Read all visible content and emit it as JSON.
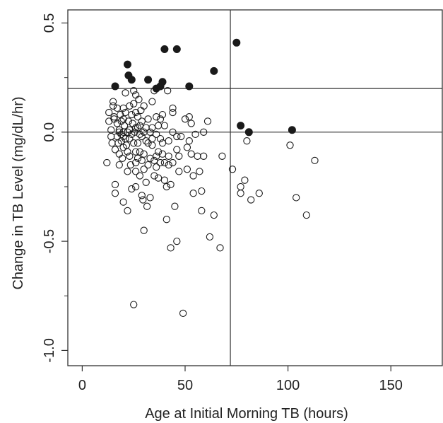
{
  "chart_data": {
    "type": "scatter",
    "title": "",
    "xlabel": "Age at Initial Morning TB (hours)",
    "ylabel": "Change in TB Level (mg/dL/hr)",
    "xlim": [
      -7,
      175
    ],
    "ylim": [
      -1.07,
      0.56
    ],
    "x_ticks": [
      0,
      50,
      100,
      150
    ],
    "x_tick_labels": [
      "0",
      "50",
      "100",
      "150"
    ],
    "y_ticks": [
      0.5,
      0.0,
      -0.5,
      -1.0
    ],
    "y_tick_labels": [
      "0.5",
      "0.0",
      "-0.5",
      "-1.0"
    ],
    "y_minor_ticks": [
      0.25,
      -0.25,
      -0.75
    ],
    "grid": false,
    "reference_lines": [
      {
        "orientation": "vertical",
        "x": 72
      },
      {
        "orientation": "horizontal",
        "y": 0.2
      },
      {
        "orientation": "horizontal",
        "y": 0.0
      }
    ],
    "series": [
      {
        "marker": "filled-circle",
        "color": "#1a1a1a",
        "points": [
          [
            16,
            0.21
          ],
          [
            22,
            0.31
          ],
          [
            22.5,
            0.26
          ],
          [
            24,
            0.24
          ],
          [
            32,
            0.24
          ],
          [
            36,
            0.2
          ],
          [
            38,
            0.21
          ],
          [
            39,
            0.23
          ],
          [
            40,
            0.38
          ],
          [
            46,
            0.38
          ],
          [
            52,
            0.21
          ],
          [
            64,
            0.28
          ],
          [
            75,
            0.41
          ],
          [
            77,
            0.03
          ],
          [
            81,
            0.0
          ],
          [
            102,
            0.01
          ]
        ]
      },
      {
        "marker": "open-circle",
        "color": "#1a1a1a",
        "points": [
          [
            12,
            -0.14
          ],
          [
            13,
            0.09
          ],
          [
            13,
            0.05
          ],
          [
            14,
            0.01
          ],
          [
            14,
            -0.02
          ],
          [
            14.5,
            -0.05
          ],
          [
            15,
            0.14
          ],
          [
            15,
            0.12
          ],
          [
            15.5,
            0.07
          ],
          [
            15.5,
            0.06
          ],
          [
            16,
            -0.08
          ],
          [
            16,
            -0.24
          ],
          [
            16,
            -0.28
          ],
          [
            17,
            0.11
          ],
          [
            17,
            0.04
          ],
          [
            17,
            -0.02
          ],
          [
            17.5,
            -0.05
          ],
          [
            18,
            0.01
          ],
          [
            18,
            0.0
          ],
          [
            18,
            -0.1
          ],
          [
            18,
            -0.15
          ],
          [
            18.5,
            0.08
          ],
          [
            19,
            0.05
          ],
          [
            19,
            -0.01
          ],
          [
            19,
            -0.04
          ],
          [
            19.5,
            -0.12
          ],
          [
            20,
            0.11
          ],
          [
            20,
            0.06
          ],
          [
            20,
            0.0
          ],
          [
            20,
            -0.02
          ],
          [
            20,
            -0.07
          ],
          [
            20,
            -0.32
          ],
          [
            20.5,
            0.03
          ],
          [
            21,
            0.09
          ],
          [
            21,
            -0.03
          ],
          [
            21,
            0.18
          ],
          [
            21.5,
            -0.06
          ],
          [
            22,
            0.0
          ],
          [
            22,
            -0.09
          ],
          [
            22,
            -0.18
          ],
          [
            22,
            -0.36
          ],
          [
            22.5,
            0.05
          ],
          [
            23,
            0.12
          ],
          [
            23,
            0.01
          ],
          [
            23,
            -0.03
          ],
          [
            23,
            -0.11
          ],
          [
            23.5,
            -0.15
          ],
          [
            24,
            0.08
          ],
          [
            24,
            -0.01
          ],
          [
            24,
            -0.26
          ],
          [
            24.5,
            0.04
          ],
          [
            25,
            0.19
          ],
          [
            25,
            0.13
          ],
          [
            25,
            -0.05
          ],
          [
            25,
            -0.79
          ],
          [
            25.5,
            0.0
          ],
          [
            26,
            0.17
          ],
          [
            26,
            0.09
          ],
          [
            26,
            0.02
          ],
          [
            26,
            -0.09
          ],
          [
            26,
            -0.14
          ],
          [
            26,
            -0.18
          ],
          [
            26,
            -0.25
          ],
          [
            27,
            0.07
          ],
          [
            27,
            0.02
          ],
          [
            27,
            -0.05
          ],
          [
            27,
            -0.12
          ],
          [
            27.5,
            0.15
          ],
          [
            28,
            0.03
          ],
          [
            28,
            -0.01
          ],
          [
            28,
            -0.09
          ],
          [
            28,
            -0.2
          ],
          [
            28.5,
            0.1
          ],
          [
            29,
            0.05
          ],
          [
            29,
            -0.02
          ],
          [
            29,
            -0.13
          ],
          [
            29,
            -0.29
          ],
          [
            29.5,
            -0.31
          ],
          [
            30,
            0.12
          ],
          [
            30,
            0.0
          ],
          [
            30,
            -0.1
          ],
          [
            30,
            -0.17
          ],
          [
            30,
            -0.45
          ],
          [
            31,
            0.02
          ],
          [
            31,
            -0.04
          ],
          [
            31,
            -0.23
          ],
          [
            31.5,
            -0.34
          ],
          [
            32,
            0.06
          ],
          [
            32,
            -0.05
          ],
          [
            32,
            -0.15
          ],
          [
            33,
            0.0
          ],
          [
            33,
            -0.12
          ],
          [
            33,
            -0.3
          ],
          [
            34,
            0.14
          ],
          [
            34,
            0.02
          ],
          [
            34,
            -0.03
          ],
          [
            34,
            -0.06
          ],
          [
            35,
            -0.13
          ],
          [
            35,
            -0.2
          ],
          [
            35,
            0.19
          ],
          [
            36,
            0.07
          ],
          [
            36,
            -0.01
          ],
          [
            36,
            -0.11
          ],
          [
            36,
            -0.16
          ],
          [
            37,
            0.03
          ],
          [
            37,
            -0.09
          ],
          [
            37,
            -0.21
          ],
          [
            38,
            0.06
          ],
          [
            38,
            -0.03
          ],
          [
            38,
            -0.14
          ],
          [
            39,
            0.08
          ],
          [
            39,
            -0.05
          ],
          [
            39,
            -0.1
          ],
          [
            40,
            0.03
          ],
          [
            40,
            -0.14
          ],
          [
            40,
            -0.22
          ],
          [
            41,
            -0.25
          ],
          [
            41,
            -0.4
          ],
          [
            41.5,
            0.19
          ],
          [
            42,
            -0.04
          ],
          [
            42,
            -0.11
          ],
          [
            42,
            -0.15
          ],
          [
            43,
            -0.53
          ],
          [
            43,
            -0.24
          ],
          [
            44,
            0.11
          ],
          [
            44,
            0.09
          ],
          [
            44,
            0.0
          ],
          [
            44,
            -0.14
          ],
          [
            45,
            -0.34
          ],
          [
            46,
            -0.02
          ],
          [
            46,
            -0.08
          ],
          [
            46,
            -0.5
          ],
          [
            47,
            -0.11
          ],
          [
            47,
            -0.18
          ],
          [
            48,
            -0.02
          ],
          [
            49,
            -0.83
          ],
          [
            50,
            0.06
          ],
          [
            51,
            -0.07
          ],
          [
            51,
            -0.17
          ],
          [
            52,
            0.07
          ],
          [
            52,
            -0.04
          ],
          [
            53,
            0.04
          ],
          [
            53,
            -0.1
          ],
          [
            54,
            -0.2
          ],
          [
            54,
            -0.28
          ],
          [
            55,
            -0.01
          ],
          [
            56,
            -0.11
          ],
          [
            57,
            -0.18
          ],
          [
            58,
            -0.27
          ],
          [
            58,
            -0.36
          ],
          [
            59,
            0.0
          ],
          [
            59,
            -0.11
          ],
          [
            61,
            0.05
          ],
          [
            62,
            -0.48
          ],
          [
            64,
            -0.38
          ],
          [
            67,
            -0.53
          ],
          [
            68,
            -0.11
          ],
          [
            73,
            -0.17
          ],
          [
            77,
            -0.25
          ],
          [
            77,
            -0.28
          ],
          [
            79,
            -0.22
          ],
          [
            80,
            -0.04
          ],
          [
            82,
            -0.31
          ],
          [
            86,
            -0.28
          ],
          [
            101,
            -0.06
          ],
          [
            104,
            -0.3
          ],
          [
            109,
            -0.38
          ],
          [
            113,
            -0.13
          ]
        ]
      }
    ]
  }
}
